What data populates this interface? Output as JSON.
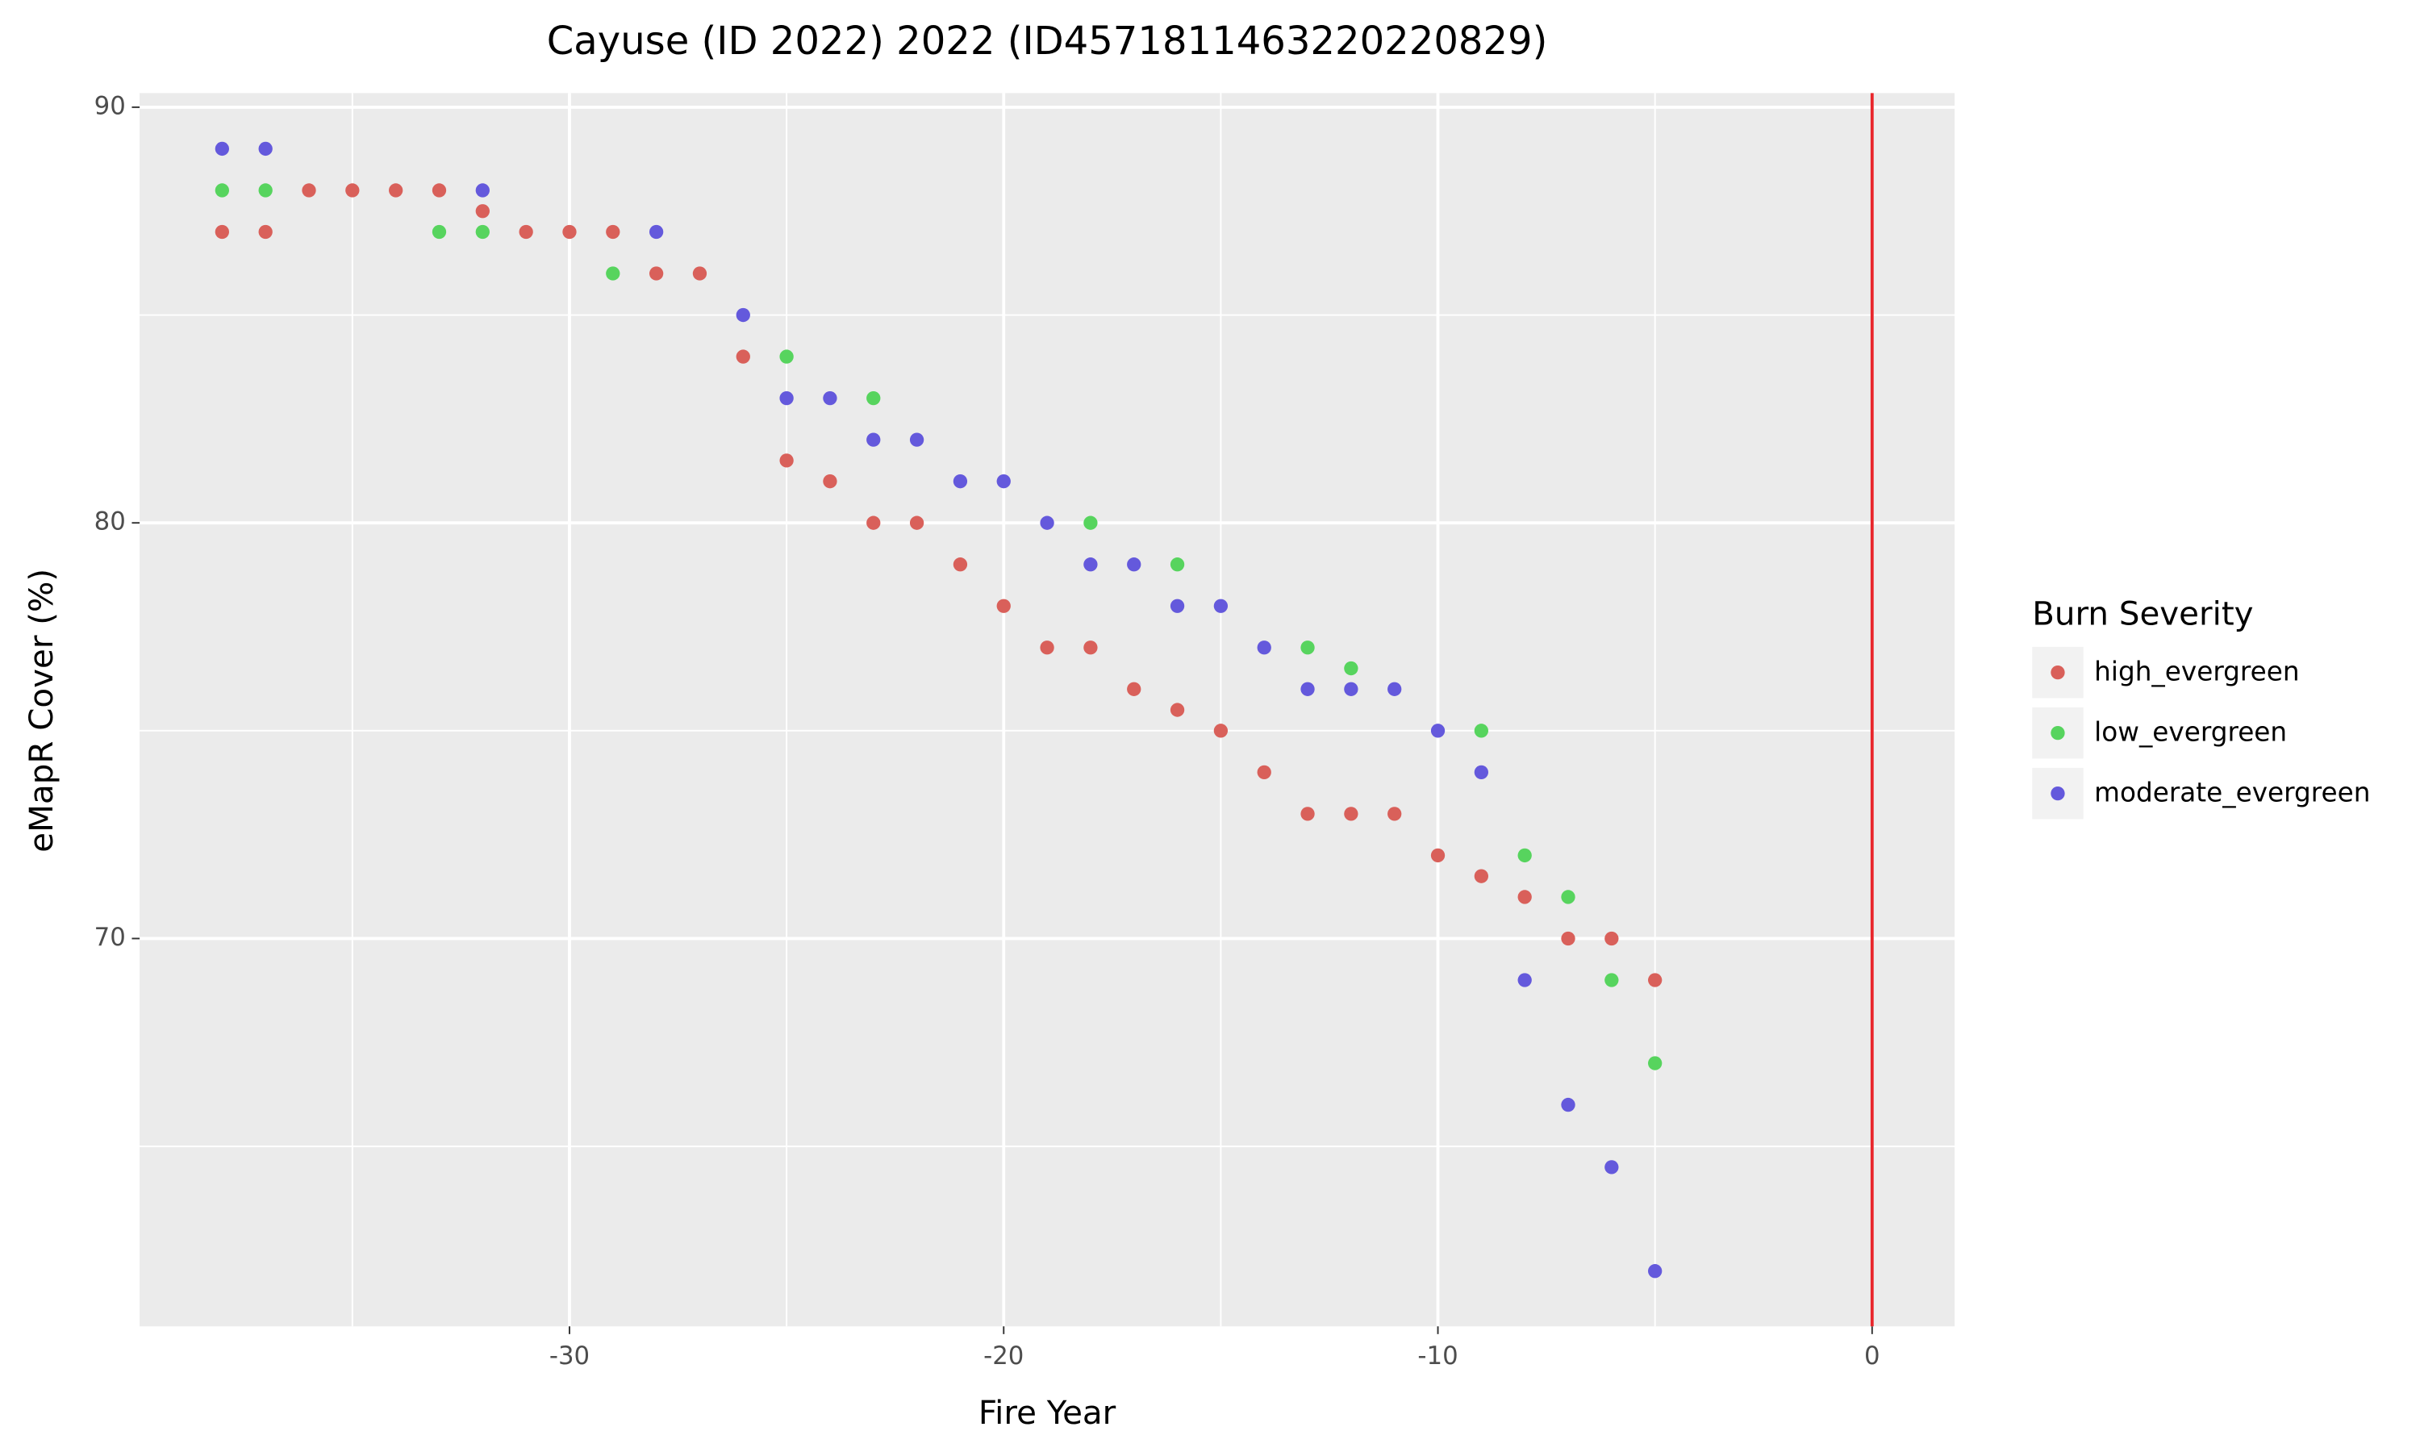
{
  "chart_data": {
    "type": "scatter",
    "title": "Cayuse (ID 2022) 2022 (ID45718114632202208​29)",
    "x_label": "Fire Year",
    "y_label": "eMapR Cover (%)",
    "legend_title": "Burn Severity",
    "legend": "right",
    "xlim": [
      -39.9,
      1.9
    ],
    "ylim": [
      60.67,
      90.34
    ],
    "xticks": [
      -30,
      -20,
      -10,
      0
    ],
    "yticks": [
      70,
      80,
      90
    ],
    "x_minor_ticks": [
      -35,
      -25,
      -15,
      -5
    ],
    "y_minor_ticks": [
      65,
      75,
      85
    ],
    "grid": true,
    "vline": {
      "x": 0,
      "color": "#e8262b"
    },
    "series": [
      {
        "name": "high_evergreen",
        "color": "#d9605a",
        "x": [
          -38,
          -37,
          -36,
          -35,
          -34,
          -33,
          -32,
          -31,
          -30,
          -29,
          -28,
          -27,
          -26,
          -25,
          -24,
          -23,
          -22,
          -21,
          -20,
          -19,
          -18,
          -17,
          -16,
          -15,
          -14,
          -13,
          -12,
          -11,
          -10,
          -9,
          -8,
          -7,
          -6,
          -5
        ],
        "values": [
          87,
          87,
          88,
          88,
          88,
          88,
          87.5,
          87,
          87,
          87,
          86,
          86,
          84,
          81.5,
          81,
          80,
          80,
          79,
          78,
          77,
          77,
          76,
          75.5,
          75,
          74,
          73,
          73,
          73,
          72,
          71.5,
          71,
          70,
          70,
          69
        ]
      },
      {
        "name": "low_evergreen",
        "color": "#57d45e",
        "x": [
          -38,
          -37,
          -33,
          -32,
          -29,
          -25,
          -23,
          -18,
          -16,
          -13,
          -12,
          -9,
          -8,
          -7,
          -6,
          -5
        ],
        "values": [
          88,
          88,
          87,
          87,
          86,
          84,
          83,
          80,
          79,
          77,
          76.5,
          75,
          72,
          71,
          69,
          67
        ]
      },
      {
        "name": "moderate_evergreen",
        "color": "#6459dc",
        "x": [
          -38,
          -37,
          -32,
          -28,
          -26,
          -25,
          -24,
          -23,
          -22,
          -21,
          -20,
          -19,
          -18,
          -17,
          -16,
          -15,
          -14,
          -13,
          -12,
          -11,
          -10,
          -9,
          -8,
          -7,
          -6,
          -5
        ],
        "values": [
          89,
          89,
          88,
          87,
          85,
          83,
          83,
          82,
          82,
          81,
          81,
          80,
          79,
          79,
          78,
          78,
          77,
          76,
          76,
          76,
          75,
          74,
          69,
          66,
          64.5,
          62
        ]
      }
    ]
  }
}
